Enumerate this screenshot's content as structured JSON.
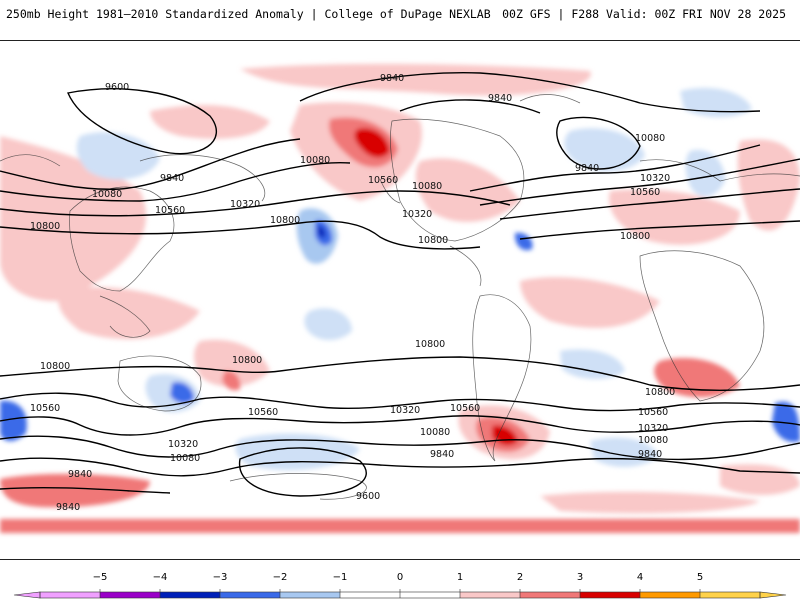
{
  "header": {
    "left_title": "250mb Height 1981–2010 Standardized Anomaly | College of DuPage NEXLAB",
    "right_title": "00Z GFS | F288 Valid: 00Z FRI NOV 28 2025"
  },
  "map": {
    "contour_labels": {
      "c9600_nw": "9600",
      "c9840_npac": "9840",
      "c9840_ncan": "9840",
      "c9840_natl": "9840",
      "c9840_nasia": "9840",
      "c10080_pac": "10080",
      "c10080_asia": "10080",
      "c10080_us": "10080",
      "c10080_eu": "10080",
      "c10320_pac": "10320",
      "c10320_us": "10320",
      "c10320_eu": "10320",
      "c10560_pac": "10560",
      "c10560_us": "10560",
      "c10560_af": "10560",
      "c10800_asia": "10800",
      "c10800_pac": "10800",
      "c10800_us": "10800",
      "c10800_eu": "10800",
      "c10800_sasia": "10800",
      "c10800_spac": "10800",
      "c10800_satl": "10800",
      "c10800_safr": "10800",
      "c10560_sw": "10560",
      "c10560_spac": "10560",
      "c10560_satl": "10560",
      "c10560_sind": "10560",
      "c10320_sw": "10320",
      "c10320_satl": "10320",
      "c10320_sind": "10320",
      "c10080_sw": "10080",
      "c10080_satl": "10080",
      "c10080_sind": "10080",
      "c9840_sw": "9840",
      "c9840_satl": "9840",
      "c9840_sind": "9840",
      "c9840_far": "9840",
      "c9600_s": "9600"
    }
  },
  "colorbar": {
    "ticks": [
      "−5",
      "−4",
      "−3",
      "−2",
      "−1",
      "0",
      "1",
      "2",
      "3",
      "4",
      "5"
    ],
    "colors": [
      "#f0a0ff",
      "#9a00c8",
      "#0020b8",
      "#3a6ae8",
      "#a8c8f0",
      "#ffffff",
      "#ffffff",
      "#f9c8c8",
      "#f07878",
      "#d80000",
      "#ff9a00",
      "#ffd24a"
    ]
  }
}
